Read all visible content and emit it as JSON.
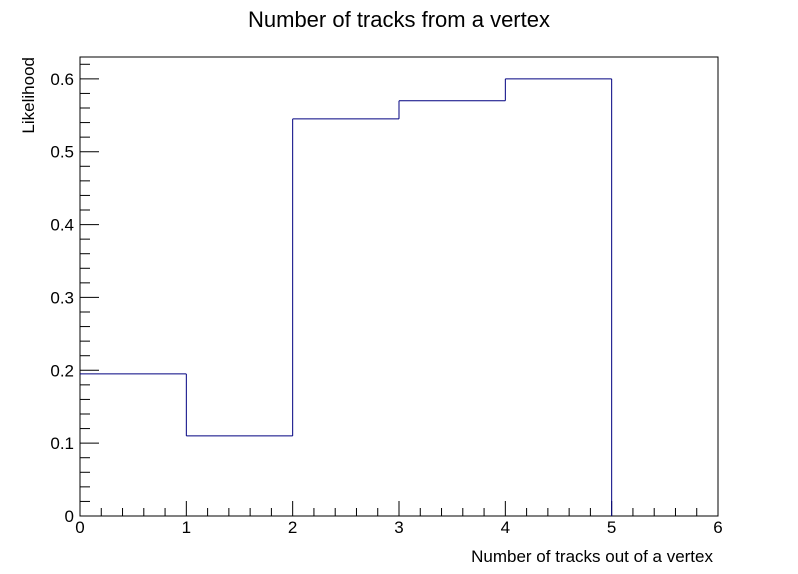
{
  "chart_data": {
    "type": "histogram",
    "title": "Number of tracks from a vertex",
    "xlabel": "Number of tracks out of a vertex",
    "ylabel": "Likelihood",
    "bin_edges": [
      0,
      1,
      2,
      3,
      4,
      5,
      6
    ],
    "values": [
      0.195,
      0.11,
      0.545,
      0.57,
      0.6,
      0
    ],
    "xlim": [
      0,
      6
    ],
    "ylim": [
      0,
      0.63
    ],
    "xticks": [
      "0",
      "1",
      "2",
      "3",
      "4",
      "5",
      "6"
    ],
    "yticks": [
      "0",
      "0.1",
      "0.2",
      "0.3",
      "0.4",
      "0.5",
      "0.6"
    ],
    "grid": false,
    "line_color": "#000080"
  }
}
